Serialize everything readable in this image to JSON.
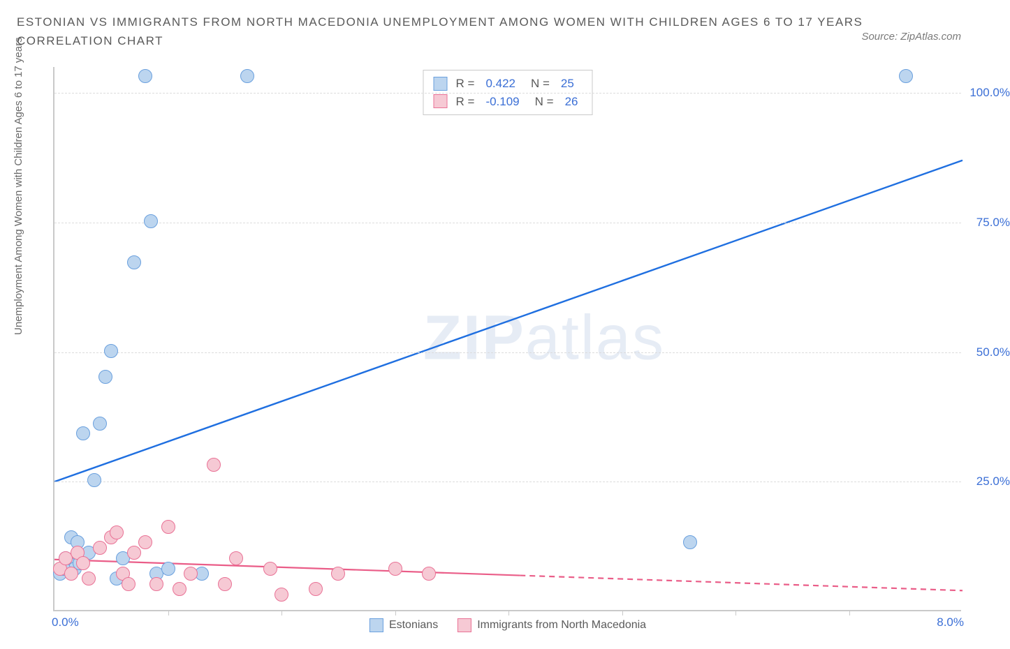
{
  "title_line1": "ESTONIAN VS IMMIGRANTS FROM NORTH MACEDONIA UNEMPLOYMENT AMONG WOMEN WITH CHILDREN AGES 6 TO 17 YEARS",
  "title_line2": "CORRELATION CHART",
  "source": "Source: ZipAtlas.com",
  "y_axis_label": "Unemployment Among Women with Children Ages 6 to 17 years",
  "watermark_bold": "ZIP",
  "watermark_light": "atlas",
  "chart": {
    "type": "scatter",
    "xlim": [
      0,
      8
    ],
    "ylim": [
      0,
      105
    ],
    "x_ticks": [
      0,
      4,
      8
    ],
    "x_tick_labels": [
      "0.0%",
      "",
      "8.0%"
    ],
    "y_ticks": [
      25,
      50,
      75,
      100
    ],
    "y_tick_labels": [
      "25.0%",
      "50.0%",
      "75.0%",
      "100.0%"
    ],
    "grid_color": "#dcdcdc",
    "background_color": "#ffffff",
    "axis_color": "#c9c9c9",
    "series": [
      {
        "name": "Estonians",
        "fill": "#bcd5ef",
        "stroke": "#6aa0de",
        "marker_radius": 10,
        "r_value": "0.422",
        "n_value": "25",
        "trend": {
          "x1": 0,
          "y1": 25,
          "x2": 8,
          "y2": 87,
          "color": "#1f6fe0",
          "width": 2.4,
          "dash_from_x": null
        },
        "points": [
          {
            "x": 0.05,
            "y": 7
          },
          {
            "x": 0.1,
            "y": 10
          },
          {
            "x": 0.12,
            "y": 9
          },
          {
            "x": 0.15,
            "y": 14
          },
          {
            "x": 0.18,
            "y": 8
          },
          {
            "x": 0.2,
            "y": 13
          },
          {
            "x": 0.25,
            "y": 34
          },
          {
            "x": 0.3,
            "y": 11
          },
          {
            "x": 0.35,
            "y": 25
          },
          {
            "x": 0.4,
            "y": 36
          },
          {
            "x": 0.45,
            "y": 45
          },
          {
            "x": 0.5,
            "y": 50
          },
          {
            "x": 0.55,
            "y": 6
          },
          {
            "x": 0.6,
            "y": 10
          },
          {
            "x": 0.7,
            "y": 67
          },
          {
            "x": 0.8,
            "y": 103
          },
          {
            "x": 0.85,
            "y": 75
          },
          {
            "x": 0.9,
            "y": 7
          },
          {
            "x": 1.0,
            "y": 8
          },
          {
            "x": 1.3,
            "y": 7
          },
          {
            "x": 1.7,
            "y": 103
          },
          {
            "x": 5.6,
            "y": 13
          },
          {
            "x": 7.5,
            "y": 103
          },
          {
            "x": 0.22,
            "y": 9
          },
          {
            "x": 0.08,
            "y": 8
          }
        ]
      },
      {
        "name": "Immigrants from North Macedonia",
        "fill": "#f6c9d4",
        "stroke": "#e97296",
        "marker_radius": 10,
        "r_value": "-0.109",
        "n_value": "26",
        "trend": {
          "x1": 0,
          "y1": 10,
          "x2": 8,
          "y2": 4,
          "color": "#ea5d88",
          "width": 2.2,
          "dash_from_x": 4.1
        },
        "points": [
          {
            "x": 0.05,
            "y": 8
          },
          {
            "x": 0.1,
            "y": 10
          },
          {
            "x": 0.15,
            "y": 7
          },
          {
            "x": 0.2,
            "y": 11
          },
          {
            "x": 0.25,
            "y": 9
          },
          {
            "x": 0.3,
            "y": 6
          },
          {
            "x": 0.4,
            "y": 12
          },
          {
            "x": 0.5,
            "y": 14
          },
          {
            "x": 0.55,
            "y": 15
          },
          {
            "x": 0.6,
            "y": 7
          },
          {
            "x": 0.65,
            "y": 5
          },
          {
            "x": 0.7,
            "y": 11
          },
          {
            "x": 0.8,
            "y": 13
          },
          {
            "x": 0.9,
            "y": 5
          },
          {
            "x": 1.0,
            "y": 16
          },
          {
            "x": 1.1,
            "y": 4
          },
          {
            "x": 1.2,
            "y": 7
          },
          {
            "x": 1.4,
            "y": 28
          },
          {
            "x": 1.5,
            "y": 5
          },
          {
            "x": 1.6,
            "y": 10
          },
          {
            "x": 1.9,
            "y": 8
          },
          {
            "x": 2.0,
            "y": 3
          },
          {
            "x": 2.3,
            "y": 4
          },
          {
            "x": 2.5,
            "y": 7
          },
          {
            "x": 3.0,
            "y": 8
          },
          {
            "x": 3.3,
            "y": 7
          }
        ]
      }
    ]
  },
  "legend_top": {
    "r_label": "R =",
    "n_label": "N ="
  },
  "legend_bottom": {
    "items": [
      "Estonians",
      "Immigrants from North Macedonia"
    ]
  }
}
